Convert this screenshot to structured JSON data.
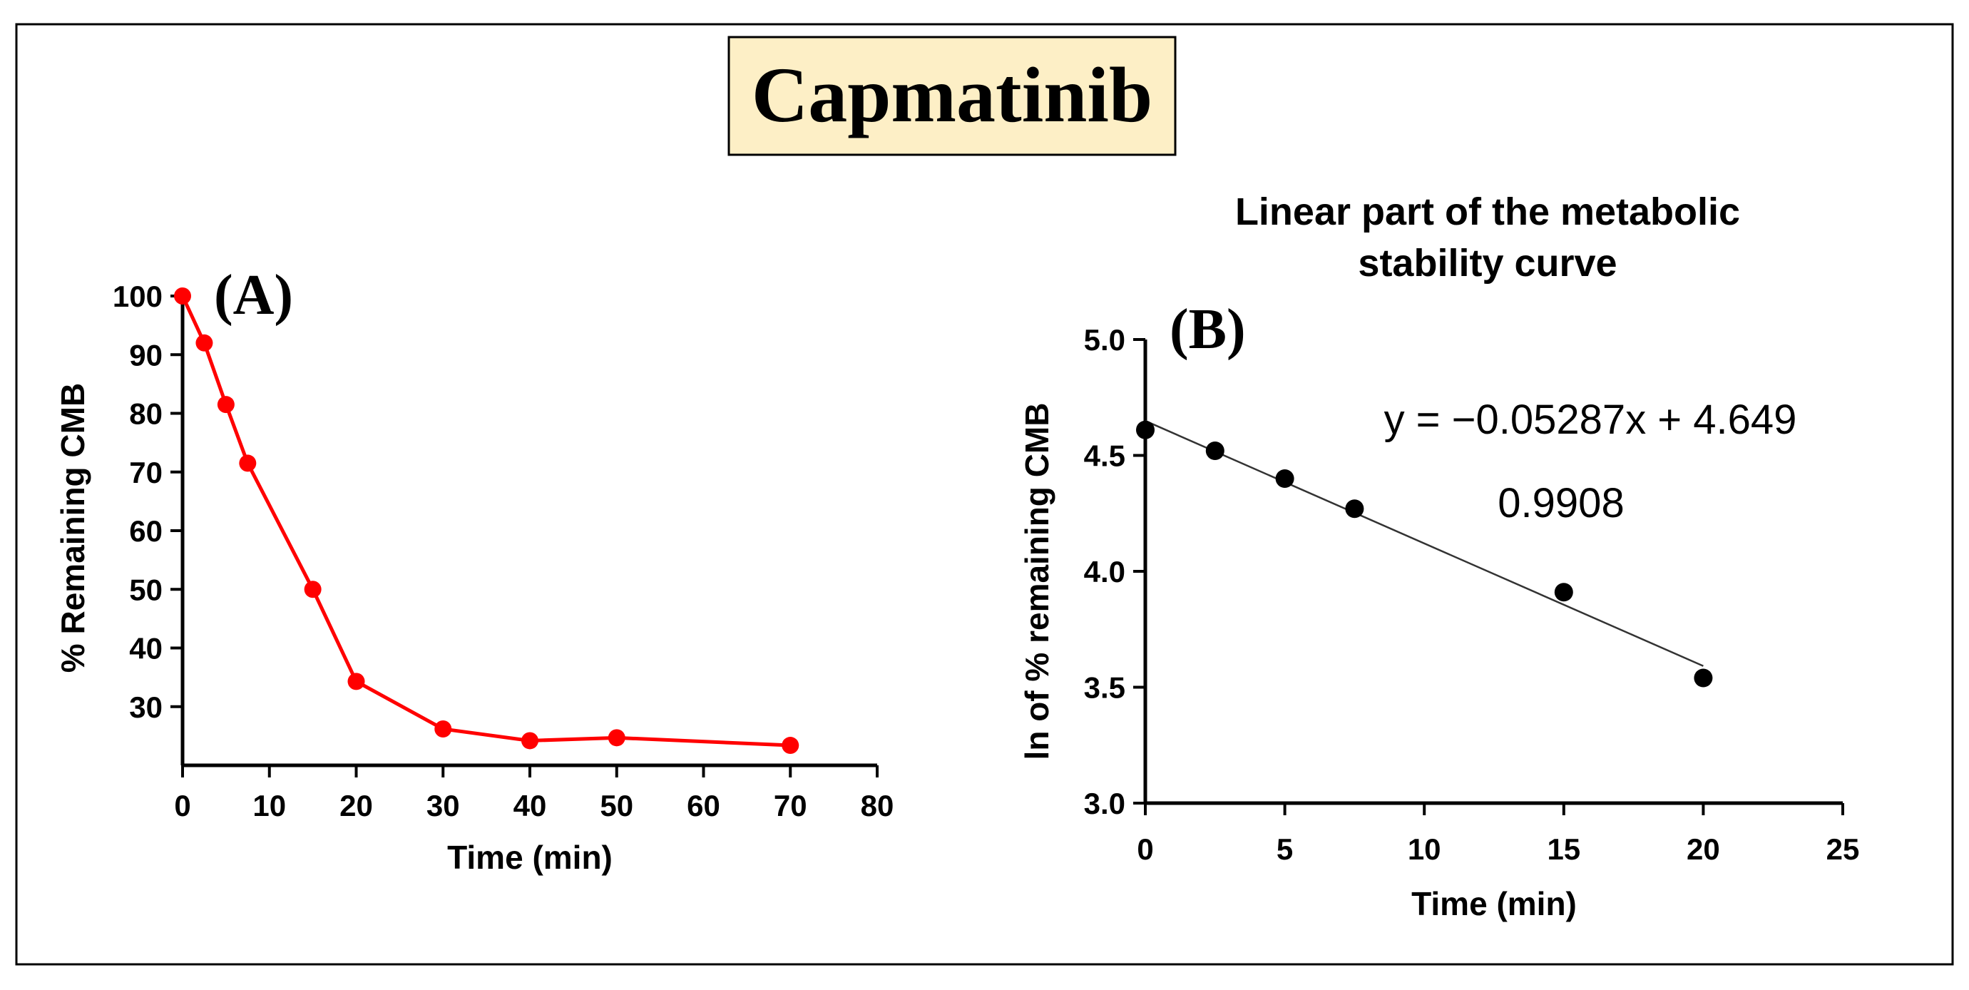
{
  "figure": {
    "title": "Capmatinib",
    "title_bg": "#fdefc6"
  },
  "chart_data": [
    {
      "type": "line",
      "panel_label": "(A)",
      "title": "",
      "xlabel": "Time (min)",
      "ylabel": "% Remaining CMB",
      "xlim": [
        0,
        80
      ],
      "ylim": [
        20,
        100
      ],
      "xticks": [
        "0",
        "10",
        "20",
        "30",
        "40",
        "50",
        "60",
        "70",
        "80"
      ],
      "yticks": [
        "30",
        "40",
        "50",
        "60",
        "70",
        "80",
        "90",
        "100"
      ],
      "color": "#ff0000",
      "series": [
        {
          "name": "% Remaining CMB",
          "x": [
            0,
            2.5,
            5,
            7.5,
            15,
            20,
            30,
            40,
            50,
            70
          ],
          "y": [
            100,
            92,
            81.5,
            71.5,
            50,
            34.3,
            26.2,
            24.2,
            24.7,
            23.4
          ]
        }
      ]
    },
    {
      "type": "scatter",
      "panel_label": "(B)",
      "title": "Linear part of the metabolic stability curve",
      "title_lines": [
        "Linear part of the metabolic",
        "stability curve"
      ],
      "xlabel": "Time (min)",
      "ylabel": "ln of % remaining CMB",
      "xlim": [
        0,
        25
      ],
      "ylim": [
        3.0,
        5.0
      ],
      "xticks": [
        "0",
        "5",
        "10",
        "15",
        "20",
        "25"
      ],
      "yticks": [
        "3.0",
        "3.5",
        "4.0",
        "4.5",
        "5.0"
      ],
      "color": "#000000",
      "series": [
        {
          "name": "ln of % remaining CMB",
          "x": [
            0,
            2.5,
            5,
            7.5,
            15,
            20
          ],
          "y": [
            4.61,
            4.52,
            4.4,
            4.27,
            3.91,
            3.54
          ]
        }
      ],
      "fit": {
        "slope": -0.05287,
        "intercept": 4.649,
        "x_range": [
          0,
          20
        ],
        "equation": "y = −0.05287x + 4.649",
        "r2": "0.9908"
      }
    }
  ]
}
